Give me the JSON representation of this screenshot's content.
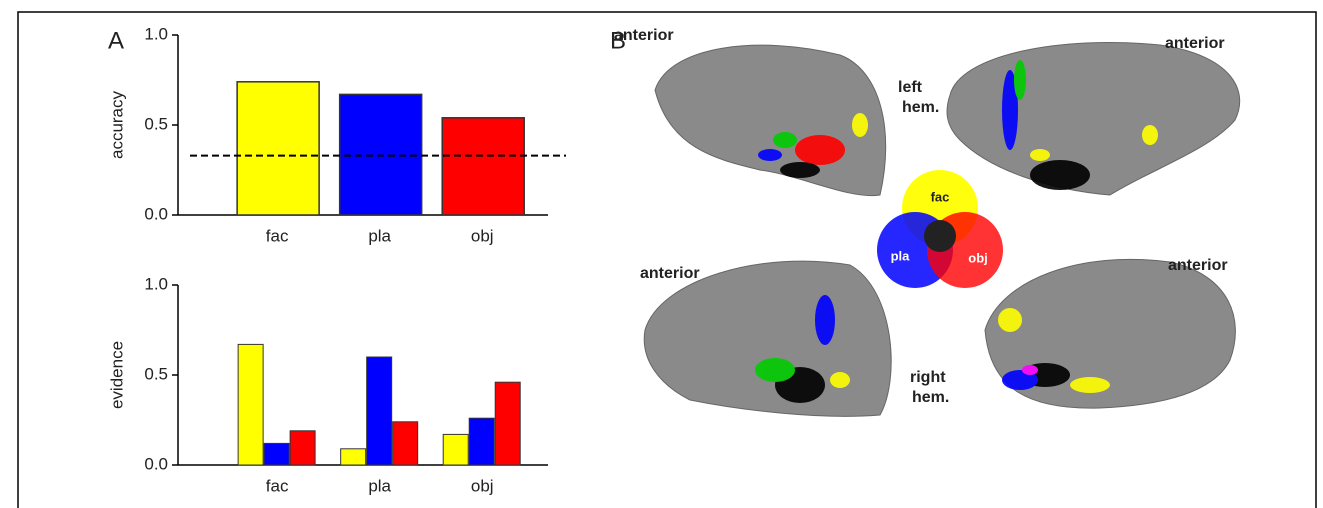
{
  "panel_labels": [
    "A",
    "B"
  ],
  "chart_data": [
    {
      "type": "bar",
      "ylabel": "accuracy",
      "categories": [
        "fac",
        "pla",
        "obj"
      ],
      "values": [
        0.74,
        0.67,
        0.54
      ],
      "colors": [
        "#ffff00",
        "#0000ff",
        "#ff0000"
      ],
      "reference_line": 0.33,
      "ylim": [
        0,
        1
      ],
      "yticks": [
        {
          "value": 0,
          "label": "0.0"
        },
        {
          "value": 0.5,
          "label": "0.5"
        },
        {
          "value": 1,
          "label": "1.0"
        }
      ]
    },
    {
      "type": "grouped_bar",
      "ylabel": "evidence",
      "categories": [
        "fac",
        "pla",
        "obj"
      ],
      "series": [
        {
          "color": "#ffff00",
          "values": [
            0.67,
            0.09,
            0.17
          ]
        },
        {
          "color": "#0000ff",
          "values": [
            0.12,
            0.6,
            0.26
          ]
        },
        {
          "color": "#ff0000",
          "values": [
            0.19,
            0.24,
            0.46
          ]
        }
      ],
      "ylim": [
        0,
        1
      ],
      "yticks": [
        {
          "value": 0,
          "label": "0.0"
        },
        {
          "value": 0.5,
          "label": "0.5"
        },
        {
          "value": 1,
          "label": "1.0"
        }
      ]
    }
  ],
  "panel_b": {
    "anterior_labels": [
      "anterior",
      "anterior",
      "anterior",
      "anterior"
    ],
    "left_hem": [
      "left",
      "hem."
    ],
    "right_hem": [
      "right",
      "hem."
    ],
    "venn": [
      "fac",
      "pla",
      "obj"
    ]
  }
}
